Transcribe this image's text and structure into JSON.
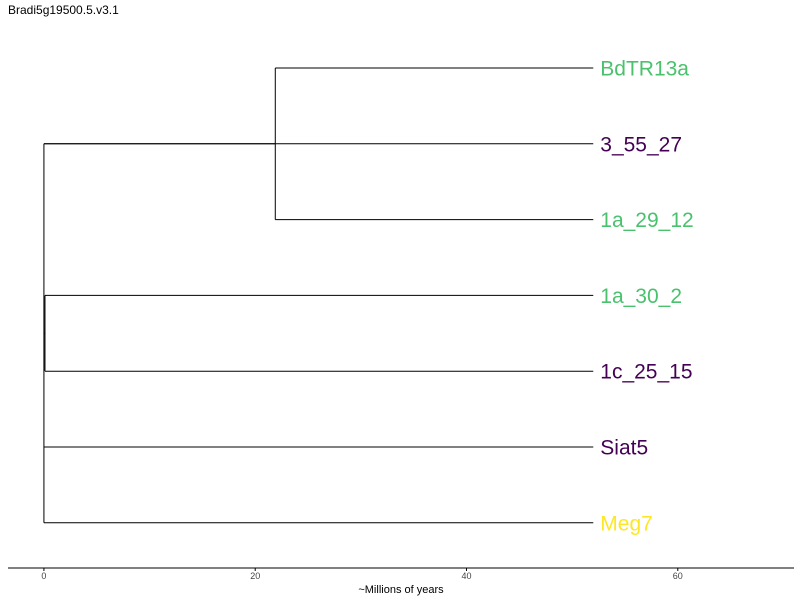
{
  "title": "Bradi5g19500.5.v3.1",
  "chart_data": {
    "type": "dendrogram",
    "xlabel": "~Millions of years",
    "xlim": [
      -3.4,
      71
    ],
    "xticks": [
      0,
      20,
      40,
      60
    ],
    "grid": false,
    "colors": {
      "green": "#4ac16d",
      "purple": "#440154",
      "yellow": "#fde725",
      "branch": "#000000"
    },
    "leaves": [
      {
        "label": "BdTR13a",
        "color": "#4ac16d"
      },
      {
        "label": "3_55_27",
        "color": "#440154"
      },
      {
        "label": "1a_29_12",
        "color": "#4ac16d"
      },
      {
        "label": "1a_30_2",
        "color": "#4ac16d"
      },
      {
        "label": "1c_25_15",
        "color": "#440154"
      },
      {
        "label": "Siat5",
        "color": "#440154"
      },
      {
        "label": "Meg7",
        "color": "#fde725"
      }
    ],
    "leaf_x": 52,
    "clades": [
      {
        "x": 21.9,
        "children": [
          0,
          2
        ]
      },
      {
        "x": 0.1,
        "children": [
          3,
          4
        ]
      },
      {
        "x": 0.0,
        "children": [
          "clade0",
          1,
          "clade1",
          5,
          6
        ]
      }
    ]
  }
}
